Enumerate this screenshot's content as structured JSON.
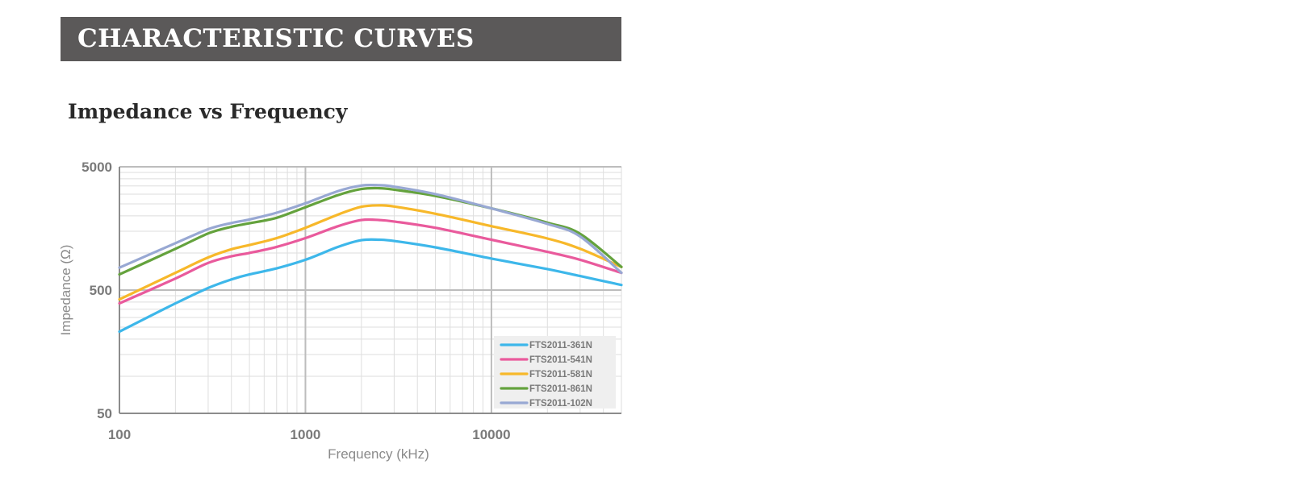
{
  "header": {
    "banner_title": "CHARACTERISTIC CURVES",
    "subtitle": "Impedance vs Frequency"
  },
  "chart_data": {
    "type": "line",
    "xlabel": "Frequency (kHz)",
    "ylabel": "Impedance (Ω)",
    "xscale": "log",
    "yscale": "log",
    "xlim": [
      100,
      50000
    ],
    "ylim": [
      50,
      5000
    ],
    "x_ticks": [
      100,
      1000,
      10000
    ],
    "x_tick_labels": [
      "100",
      "1000",
      "10000"
    ],
    "y_ticks": [
      50,
      500,
      5000
    ],
    "y_tick_labels": [
      "50",
      "500",
      "5000"
    ],
    "grid": true,
    "legend_position": "bottom-right",
    "x": [
      100,
      200,
      300,
      400,
      500,
      700,
      1000,
      1500,
      2000,
      2500,
      3000,
      5000,
      10000,
      20000,
      30000,
      50000
    ],
    "series": [
      {
        "name": "FTS2011-361N",
        "color": "#3db7ea",
        "values": [
          230,
          390,
          520,
          610,
          670,
          750,
          880,
          1120,
          1270,
          1280,
          1250,
          1110,
          900,
          740,
          650,
          550
        ]
      },
      {
        "name": "FTS2011-541N",
        "color": "#e95a9c",
        "values": [
          390,
          620,
          830,
          940,
          1000,
          1120,
          1320,
          1650,
          1850,
          1850,
          1800,
          1600,
          1280,
          1020,
          880,
          690
        ]
      },
      {
        "name": "FTS2011-581N",
        "color": "#f7b82a",
        "values": [
          420,
          690,
          920,
          1070,
          1160,
          1320,
          1600,
          2050,
          2370,
          2430,
          2380,
          2080,
          1650,
          1310,
          1080,
          770
        ]
      },
      {
        "name": "FTS2011-861N",
        "color": "#64a23d",
        "values": [
          670,
          1080,
          1440,
          1630,
          1740,
          1930,
          2350,
          2950,
          3300,
          3350,
          3260,
          2900,
          2300,
          1760,
          1430,
          770
        ]
      },
      {
        "name": "FTS2011-102N",
        "color": "#98a8d3",
        "values": [
          760,
          1200,
          1560,
          1750,
          1870,
          2120,
          2530,
          3180,
          3520,
          3540,
          3450,
          3000,
          2300,
          1720,
          1360,
          690
        ]
      }
    ]
  }
}
